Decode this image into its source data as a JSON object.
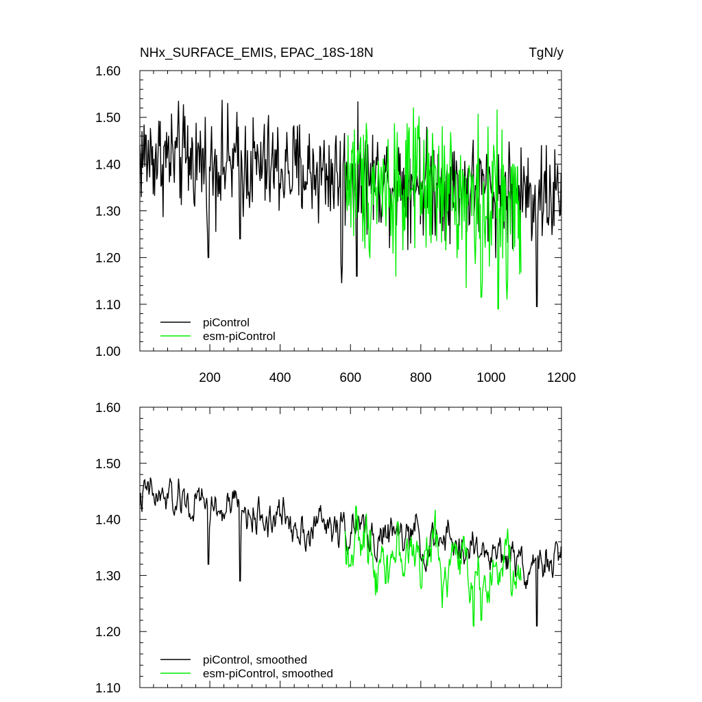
{
  "chart_data": [
    {
      "type": "line",
      "title": "NHx_SURFACE_EMIS, EPAC_18S-18N",
      "units": "TgN/y",
      "xlim": [
        1,
        1200
      ],
      "ylim": [
        1.0,
        1.6
      ],
      "yticks": [
        "1.00",
        "1.10",
        "1.20",
        "1.30",
        "1.40",
        "1.50",
        "1.60"
      ],
      "xticks": [
        "200",
        "400",
        "600",
        "800",
        "1000",
        "1200"
      ],
      "legend_position": "bottom-left",
      "series": [
        {
          "name": "piControl",
          "color": "#000000",
          "x_range": [
            1,
            1200
          ],
          "mean_start": 1.42,
          "mean_end": 1.33,
          "noise": 0.055,
          "dips": [
            [
              196,
              1.18
            ],
            [
              286,
              1.22
            ],
            [
              575,
              1.145
            ],
            [
              618,
              1.14
            ],
            [
              1130,
              1.075
            ]
          ]
        },
        {
          "name": "esm-piControl",
          "color": "#00ee00",
          "x_range": [
            585,
            1085
          ],
          "mean_start": 1.37,
          "mean_end": 1.31,
          "noise": 0.075,
          "dips": [
            [
              972,
              1.095
            ],
            [
              1020,
              1.07
            ],
            [
              1045,
              1.11
            ]
          ]
        }
      ]
    },
    {
      "type": "line",
      "xlim": [
        1,
        1200
      ],
      "ylim": [
        1.1,
        1.6
      ],
      "yticks": [
        "1.10",
        "1.20",
        "1.30",
        "1.40",
        "1.50",
        "1.60"
      ],
      "legend_position": "bottom-left",
      "series": [
        {
          "name": "piControl, smoothed",
          "color": "#000000",
          "x_range": [
            1,
            1200
          ],
          "mean_start": 1.44,
          "mean_end": 1.32,
          "noise": 0.03,
          "dips": [
            [
              196,
              1.3
            ],
            [
              286,
              1.27
            ],
            [
              1130,
              1.19
            ]
          ]
        },
        {
          "name": "esm-piControl, smoothed",
          "color": "#00ee00",
          "x_range": [
            585,
            1085
          ],
          "mean_start": 1.36,
          "mean_end": 1.3,
          "noise": 0.045,
          "dips": [
            [
              950,
              1.19
            ],
            [
              972,
              1.2
            ]
          ]
        }
      ]
    }
  ]
}
